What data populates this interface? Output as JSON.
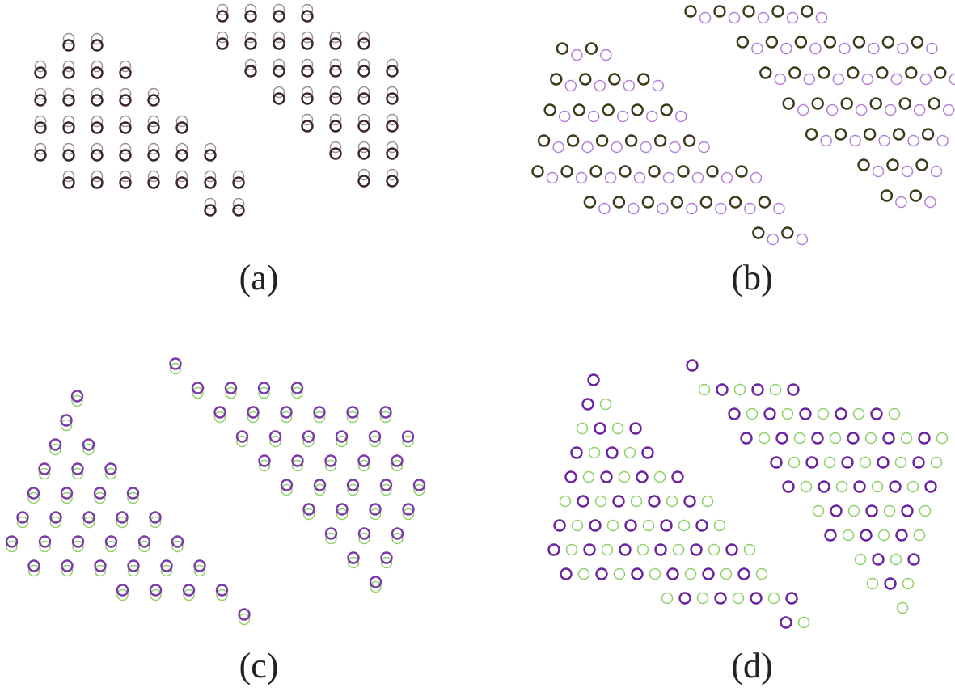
{
  "panels": [
    {
      "label": "(a)",
      "colors": {
        "front": "#3b2330",
        "back": "#9a8f95"
      }
    },
    {
      "label": "(b)",
      "colors": {
        "front": "#3a3a1a",
        "back": "#b57fd6"
      }
    },
    {
      "label": "(c)",
      "colors": {
        "front": "#7a3aa8",
        "back": "#8fcf6a"
      }
    },
    {
      "label": "(d)",
      "colors": {
        "front": "#6a22a0",
        "back": "#8fcf6a"
      }
    }
  ]
}
